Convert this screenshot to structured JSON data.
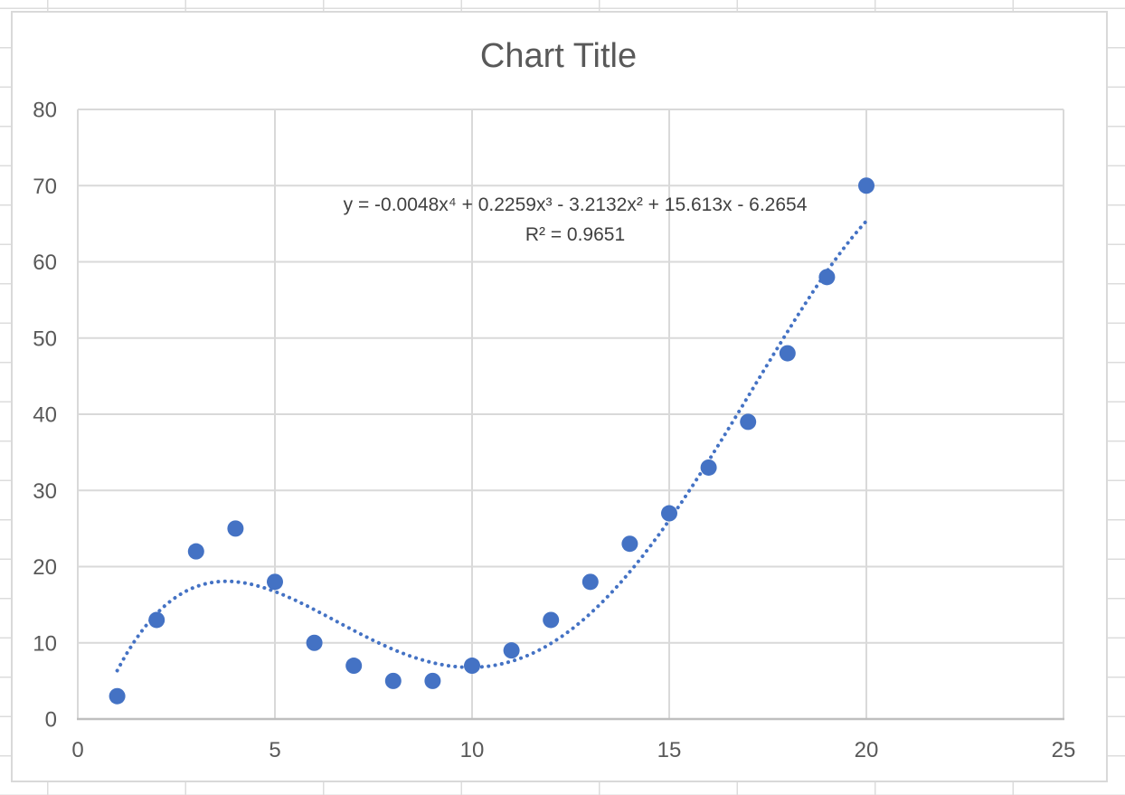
{
  "chart_data": {
    "type": "scatter",
    "title": "Chart Title",
    "x": [
      1,
      2,
      3,
      4,
      5,
      6,
      7,
      8,
      9,
      10,
      11,
      12,
      13,
      14,
      15,
      16,
      17,
      18,
      19,
      20
    ],
    "y": [
      3,
      13,
      22,
      25,
      18,
      10,
      7,
      5,
      5,
      7,
      9,
      13,
      18,
      23,
      27,
      33,
      39,
      48,
      58,
      70
    ],
    "x_axis": {
      "min": 0,
      "max": 25,
      "ticks": [
        0,
        5,
        10,
        15,
        20,
        25
      ]
    },
    "y_axis": {
      "min": 0,
      "max": 80,
      "ticks": [
        0,
        10,
        20,
        30,
        40,
        50,
        60,
        70,
        80
      ]
    },
    "grid": "on",
    "legend": "none",
    "trendline": {
      "style": "dotted",
      "type": "polynomial-order-4",
      "equation": "y = -0.0048x⁴ + 0.2259x³ - 3.2132x² + 15.613x - 6.2654",
      "r_squared_label": "R² = 0.9651",
      "x_range": [
        1,
        20
      ],
      "render_coefficients": [
        -0.004766,
        0.2259,
        -3.2132,
        15.613,
        -6.2654
      ]
    },
    "colors": {
      "marker": "#4472C4",
      "trendline": "#4472C4",
      "gridline": "#D9D9D9",
      "axis_line": "#BFBFBF",
      "title_text": "#595959",
      "tick_text": "#595959",
      "equation_text": "#404040"
    }
  }
}
